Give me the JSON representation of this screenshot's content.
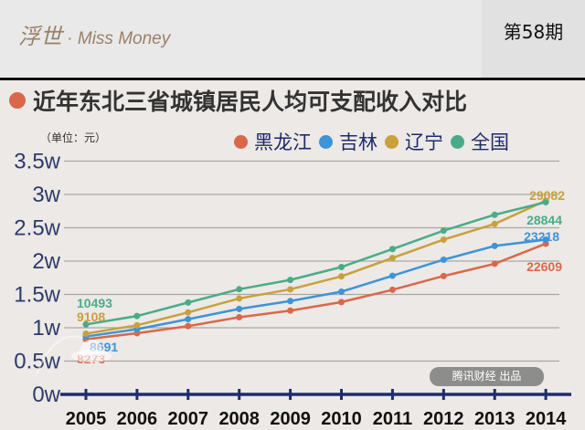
{
  "header": {
    "brand": "浮世",
    "brand_sub": " · Miss Money",
    "issue": "第58期"
  },
  "title": "近年东北三省城镇居民人均可支配收入对比",
  "title_dot_color": "#d9684a",
  "unit": "（单位：元）",
  "watermark": "Miss Money",
  "credit": "腾讯财经 出品",
  "chart_data": {
    "type": "line",
    "title": "近年东北三省城镇居民人均可支配收入对比",
    "ylabel": "（单位：元）",
    "ylim": [
      0,
      35000
    ],
    "y_ticks": [
      {
        "v": 0,
        "label": "0w"
      },
      {
        "v": 5000,
        "label": "0.5w"
      },
      {
        "v": 10000,
        "label": "1w"
      },
      {
        "v": 15000,
        "label": "1.5w"
      },
      {
        "v": 20000,
        "label": "2w"
      },
      {
        "v": 25000,
        "label": "2.5w"
      },
      {
        "v": 30000,
        "label": "3w"
      },
      {
        "v": 35000,
        "label": "3.5w"
      }
    ],
    "categories": [
      "2005",
      "2006",
      "2007",
      "2008",
      "2009",
      "2010",
      "2011",
      "2012",
      "2013",
      "2014"
    ],
    "grid": true,
    "legend_position": "top-right",
    "series": [
      {
        "name": "黑龙江",
        "color": "#d9684a",
        "values": [
          8273,
          9182,
          10245,
          11581,
          12566,
          13857,
          15696,
          17760,
          19597,
          22609
        ],
        "labels": {
          "first": "8273",
          "last": "22609"
        }
      },
      {
        "name": "吉林",
        "color": "#3d94d6",
        "values": [
          8691,
          9775,
          11286,
          12829,
          14006,
          15411,
          17797,
          20208,
          22275,
          23218
        ],
        "labels": {
          "first": "8691",
          "last": "23218"
        }
      },
      {
        "name": "辽宁",
        "color": "#c9a03c",
        "values": [
          9108,
          10370,
          12300,
          14393,
          15761,
          17713,
          20467,
          23223,
          25578,
          29082
        ],
        "labels": {
          "first": "9108",
          "last": "29082"
        }
      },
      {
        "name": "全国",
        "color": "#4aab8a",
        "values": [
          10493,
          11759,
          13786,
          15781,
          17175,
          19109,
          21810,
          24565,
          26955,
          28844
        ],
        "labels": {
          "first": "10493",
          "last": "28844"
        }
      }
    ]
  }
}
